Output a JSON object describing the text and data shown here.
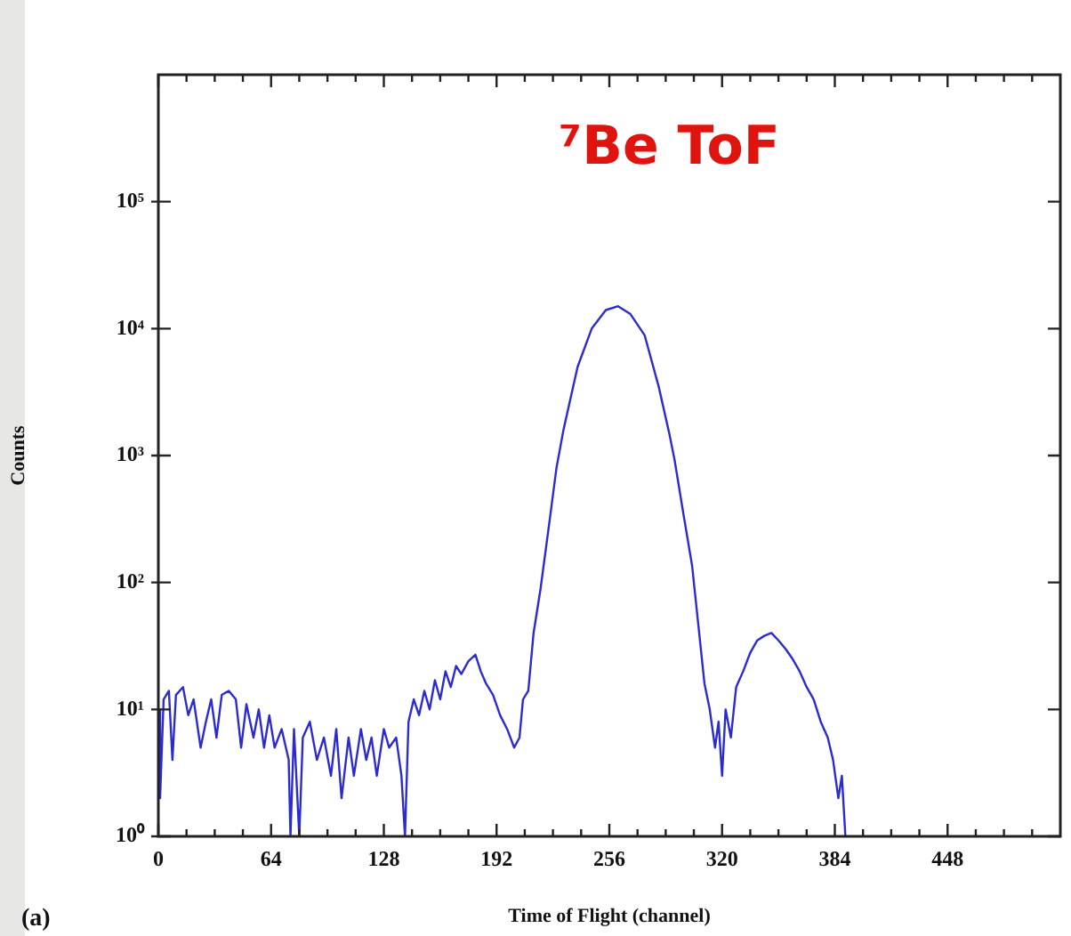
{
  "chart_data": {
    "type": "line",
    "title": "⁷Be ToF",
    "xlabel": "Time of Flight (channel)",
    "ylabel": "Counts",
    "annotations": [
      "(a)"
    ],
    "log": "y",
    "grid": false,
    "legend": false,
    "marker": "none",
    "line_style": "solid",
    "xlim": [
      0,
      512
    ],
    "ylim": [
      1,
      1000000
    ],
    "xticks": [
      0,
      {
        "value": 16,
        "label": null
      },
      {
        "value": 32,
        "label": null
      },
      {
        "value": 48,
        "label": null
      },
      64,
      {
        "value": 80,
        "label": null
      },
      {
        "value": 96,
        "label": null
      },
      {
        "value": 112,
        "label": null
      },
      128,
      {
        "value": 144,
        "label": null
      },
      {
        "value": 160,
        "label": null
      },
      {
        "value": 176,
        "label": null
      },
      192,
      {
        "value": 208,
        "label": null
      },
      {
        "value": 224,
        "label": null
      },
      {
        "value": 240,
        "label": null
      },
      256,
      {
        "value": 272,
        "label": null
      },
      {
        "value": 288,
        "label": null
      },
      {
        "value": 304,
        "label": null
      },
      320,
      {
        "value": 336,
        "label": null
      },
      {
        "value": 352,
        "label": null
      },
      {
        "value": 368,
        "label": null
      },
      384,
      {
        "value": 400,
        "label": null
      },
      {
        "value": 416,
        "label": null
      },
      {
        "value": 432,
        "label": null
      },
      448,
      {
        "value": 464,
        "label": null
      },
      {
        "value": 480,
        "label": null
      },
      {
        "value": 496,
        "label": null
      }
    ],
    "yticks": [
      {
        "value": 1,
        "label": "10⁰"
      },
      {
        "value": 10,
        "label": "10¹"
      },
      {
        "value": 100,
        "label": "10²"
      },
      {
        "value": 1000,
        "label": "10³"
      },
      {
        "value": 10000,
        "label": "10⁴"
      },
      {
        "value": 100000,
        "label": "10⁵"
      }
    ],
    "series": [
      {
        "color": "#2b2bd0",
        "x": [
          0,
          1,
          3,
          6,
          8,
          10,
          14,
          17,
          20,
          24,
          27,
          30,
          33,
          36,
          40,
          44,
          47,
          50,
          54,
          57,
          60,
          63,
          66,
          70,
          74,
          75,
          77,
          80,
          82,
          86,
          90,
          94,
          98,
          101,
          104,
          108,
          111,
          115,
          118,
          121,
          124,
          128,
          131,
          135,
          138,
          140,
          142,
          145,
          148,
          151,
          154,
          157,
          160,
          163,
          166,
          169,
          172,
          176,
          180,
          183,
          186,
          190,
          194,
          198,
          202,
          205,
          207,
          210,
          213,
          217,
          222,
          226,
          230,
          238,
          246,
          254,
          261,
          268,
          276,
          284,
          290,
          293,
          298,
          303,
          307,
          310,
          313,
          316,
          318,
          320,
          322,
          325,
          328,
          332,
          336,
          340,
          344,
          348,
          352,
          356,
          360,
          364,
          368,
          372,
          376,
          380,
          383,
          386,
          388,
          390
        ],
        "values": [
          10,
          2,
          12,
          14,
          4,
          13,
          15,
          9,
          12,
          5,
          8,
          12,
          6,
          13,
          14,
          12,
          5,
          11,
          6,
          10,
          5,
          9,
          5,
          7,
          4,
          1,
          7,
          1,
          6,
          8,
          4,
          6,
          3,
          7,
          2,
          6,
          3,
          7,
          4,
          6,
          3,
          7,
          5,
          6,
          3,
          1,
          8,
          12,
          9,
          14,
          10,
          17,
          12,
          20,
          15,
          22,
          19,
          24,
          27,
          20,
          16,
          13,
          9,
          7,
          5,
          6,
          12,
          14,
          40,
          90,
          300,
          800,
          1600,
          5000,
          10000,
          14000,
          15000,
          13000,
          8900,
          3500,
          1500,
          930,
          350,
          135,
          40,
          16,
          10,
          5,
          8,
          3,
          10,
          6,
          15,
          20,
          28,
          35,
          38,
          40,
          35,
          30,
          25,
          20,
          15,
          12,
          8,
          6,
          4,
          2,
          3,
          1
        ]
      }
    ]
  }
}
